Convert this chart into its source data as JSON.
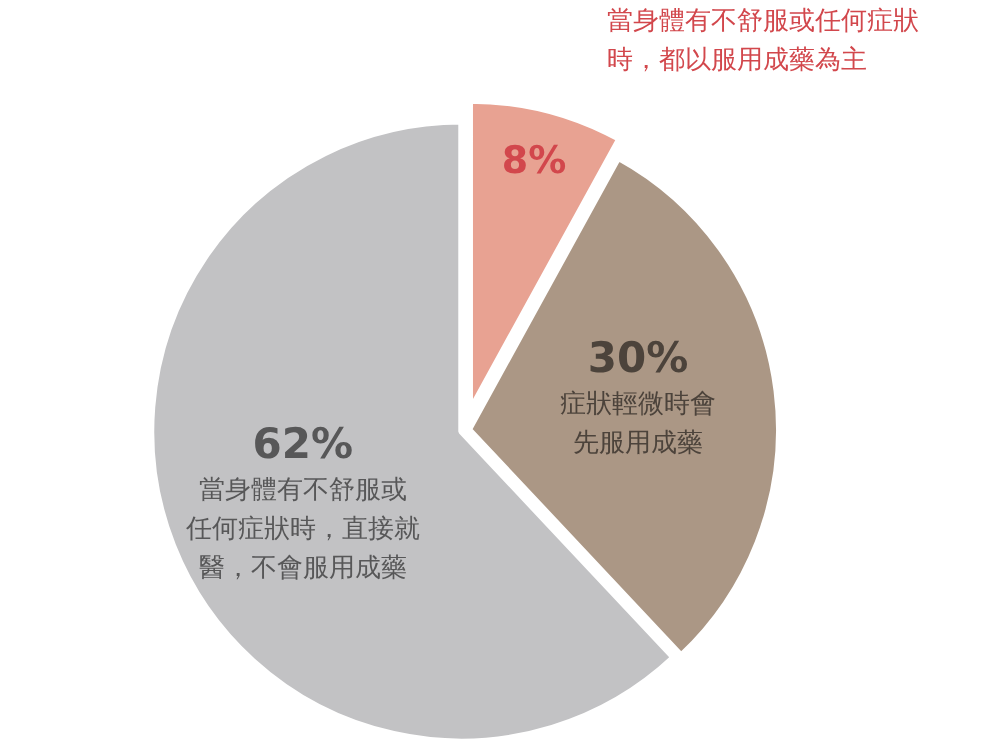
{
  "chart_data": {
    "type": "pie",
    "categories": [
      "當身體有不舒服或任何症狀時，都以服用成藥為主",
      "症狀輕微時會先服用成藥",
      "當身體有不舒服或任何症狀時，直接就醫，不會服用成藥"
    ],
    "values": [
      8,
      30,
      62
    ],
    "colors": [
      "#e8a292",
      "#ab9785",
      "#c2c2c4"
    ],
    "value_labels": [
      "8%",
      "30%",
      "62%"
    ]
  }
}
